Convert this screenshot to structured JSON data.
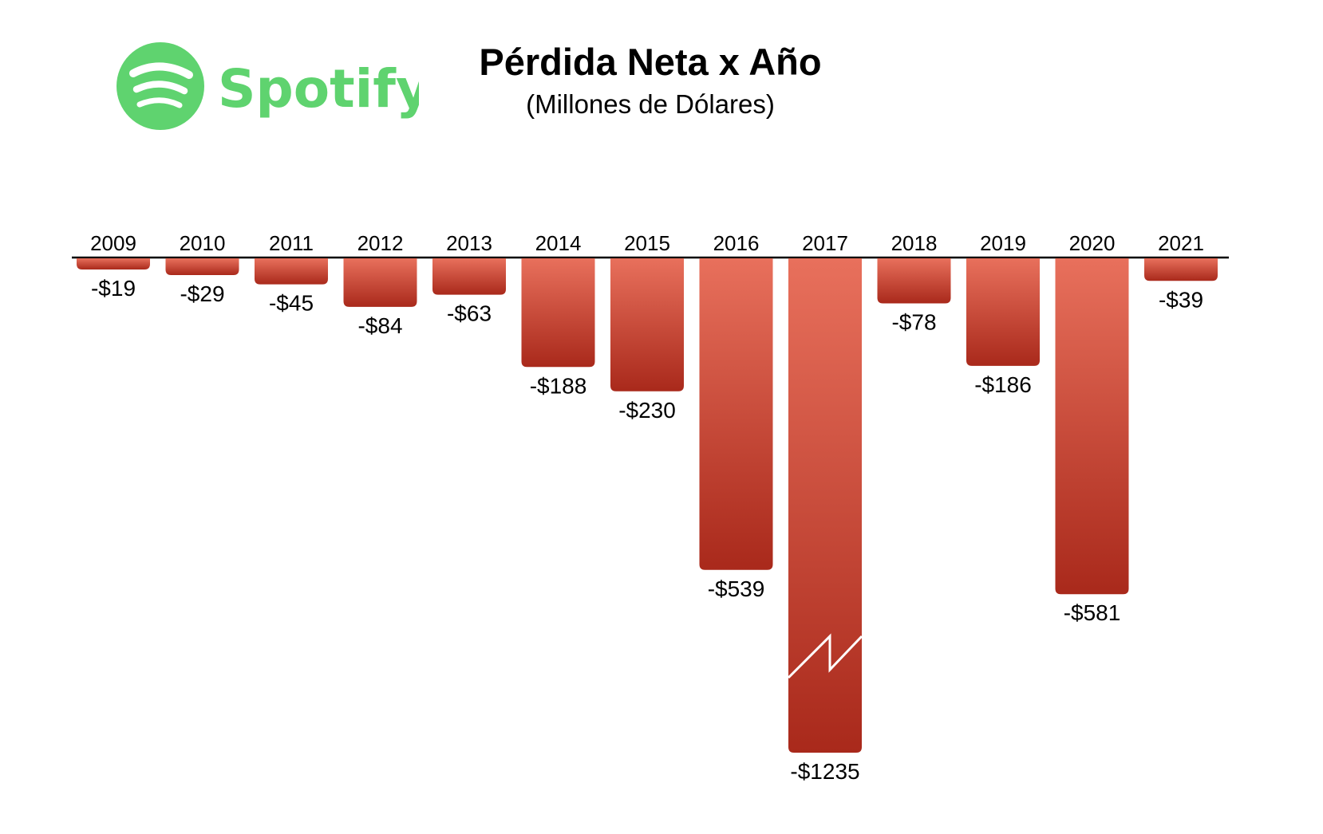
{
  "brand": {
    "name": "Spotify",
    "color": "#5fd36f"
  },
  "title": "Pérdida Neta x Año",
  "subtitle": "(Millones de Dólares)",
  "chart_data": {
    "type": "bar",
    "orientation": "downward from baseline",
    "title": "Pérdida Neta x Año",
    "subtitle": "(Millones de Dólares)",
    "categories": [
      "2009",
      "2010",
      "2011",
      "2012",
      "2013",
      "2014",
      "2015",
      "2016",
      "2017",
      "2018",
      "2019",
      "2020",
      "2021"
    ],
    "values": [
      -19,
      -29,
      -45,
      -84,
      -63,
      -188,
      -230,
      -539,
      -1235,
      -78,
      -186,
      -581,
      -39
    ],
    "value_labels": [
      "-$19",
      "-$29",
      "-$45",
      "-$84",
      "-$63",
      "-$188",
      "-$230",
      "-$539",
      "-$1235",
      "-$78",
      "-$186",
      "-$581",
      "-$39"
    ],
    "axis_break_category": "2017",
    "bar_color_top": "#e8705c",
    "bar_color_bottom": "#a9291b",
    "grid": false,
    "legend": "none"
  }
}
